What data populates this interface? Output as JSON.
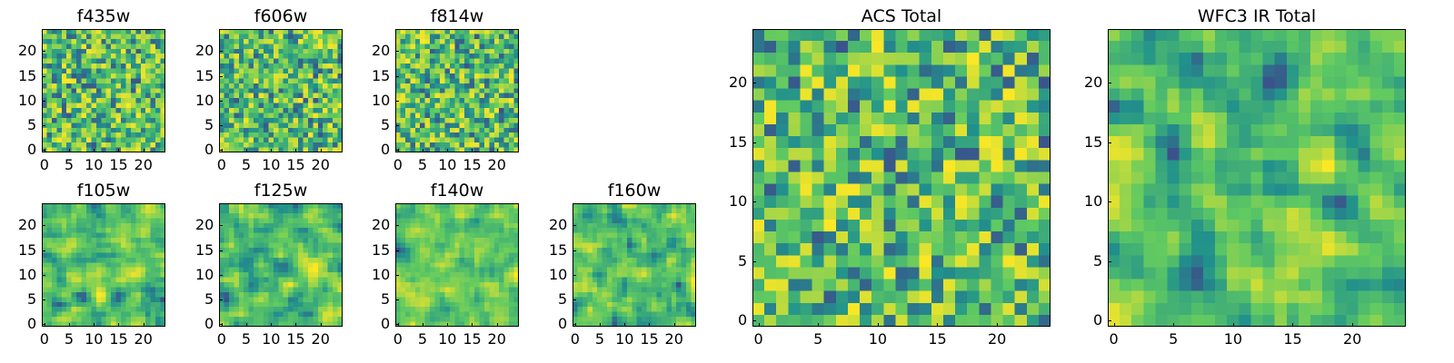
{
  "figure": {
    "panels": [
      {
        "id": "f435w",
        "title": "f435w",
        "size": "small",
        "xticks": [
          "0",
          "5",
          "10",
          "15",
          "20"
        ],
        "yticks": [
          "0",
          "5",
          "10",
          "15",
          "20"
        ],
        "seed": 11
      },
      {
        "id": "f606w",
        "title": "f606w",
        "size": "small",
        "xticks": [
          "0",
          "5",
          "10",
          "15",
          "20"
        ],
        "yticks": [
          "0",
          "5",
          "10",
          "15",
          "20"
        ],
        "seed": 23
      },
      {
        "id": "f814w",
        "title": "f814w",
        "size": "small",
        "xticks": [
          "0",
          "5",
          "10",
          "15",
          "20"
        ],
        "yticks": [
          "0",
          "5",
          "10",
          "15",
          "20"
        ],
        "seed": 37
      },
      {
        "id": "f105w",
        "title": "f105w",
        "size": "small",
        "xticks": [
          "0",
          "5",
          "10",
          "15",
          "20"
        ],
        "yticks": [
          "0",
          "5",
          "10",
          "15",
          "20"
        ],
        "seed": 41,
        "smooth": true
      },
      {
        "id": "f125w",
        "title": "f125w",
        "size": "small",
        "xticks": [
          "0",
          "5",
          "10",
          "15",
          "20"
        ],
        "yticks": [
          "0",
          "5",
          "10",
          "15",
          "20"
        ],
        "seed": 53,
        "smooth": true
      },
      {
        "id": "f140w",
        "title": "f140w",
        "size": "small",
        "xticks": [
          "0",
          "5",
          "10",
          "15",
          "20"
        ],
        "yticks": [
          "0",
          "5",
          "10",
          "15",
          "20"
        ],
        "seed": 67,
        "smooth": true
      },
      {
        "id": "f160w",
        "title": "f160w",
        "size": "small",
        "xticks": [
          "0",
          "5",
          "10",
          "15",
          "20"
        ],
        "yticks": [
          "0",
          "5",
          "10",
          "15",
          "20"
        ],
        "seed": 79,
        "smooth": true
      },
      {
        "id": "acs_total",
        "title": "ACS Total",
        "size": "large",
        "xticks": [
          "0",
          "5",
          "10",
          "15",
          "20"
        ],
        "yticks": [
          "0",
          "5",
          "10",
          "15",
          "20"
        ],
        "seed": 83
      },
      {
        "id": "wfc3_total",
        "title": "WFC3 IR Total",
        "size": "large",
        "xticks": [
          "0",
          "5",
          "10",
          "15",
          "20"
        ],
        "yticks": [
          "0",
          "5",
          "10",
          "15",
          "20"
        ],
        "seed": 97,
        "smooth": true
      }
    ]
  },
  "chart_data": {
    "type": "heatmap",
    "colormap": [
      "#440154",
      "#3b528b",
      "#21918c",
      "#5ec962",
      "#fde725"
    ],
    "grid_size": [
      25,
      25
    ],
    "xlim": [
      0,
      24
    ],
    "ylim": [
      0,
      24
    ],
    "panels": [
      "f435w",
      "f606w",
      "f814w",
      "f105w",
      "f125w",
      "f140w",
      "f160w",
      "ACS Total",
      "WFC3 IR Total"
    ]
  }
}
